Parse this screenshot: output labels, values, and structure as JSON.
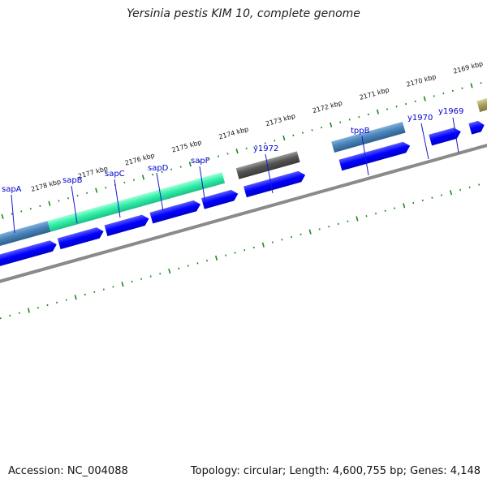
{
  "title": "Yersinia pestis KIM 10, complete genome",
  "footer": {
    "accession": "Accession: NC_004088",
    "summary": "Topology: circular; Length: 4,600,755 bp; Genes: 4,148"
  },
  "colors": {
    "cds": "#0000ff",
    "gene_blue": "#4a84b8",
    "gene_green": "#33f0a8",
    "gene_grey": "#555555",
    "gene_olive": "#a8a060",
    "tick": "#1a8a1a",
    "gene_label": "#0000cc",
    "backbone": "#8a8a8a"
  },
  "kbp_labels": [
    "2169 kbp",
    "2170 kbp",
    "2171 kbp",
    "2172 kbp",
    "2173 kbp",
    "2174 kbp",
    "2175 kbp",
    "2176 kbp",
    "2177 kbp",
    "2178 kbp"
  ],
  "gene_labels": [
    "sapA",
    "sapB",
    "sapC",
    "sapD",
    "sapF",
    "y1972",
    "tppB",
    "y1970",
    "y1969"
  ]
}
